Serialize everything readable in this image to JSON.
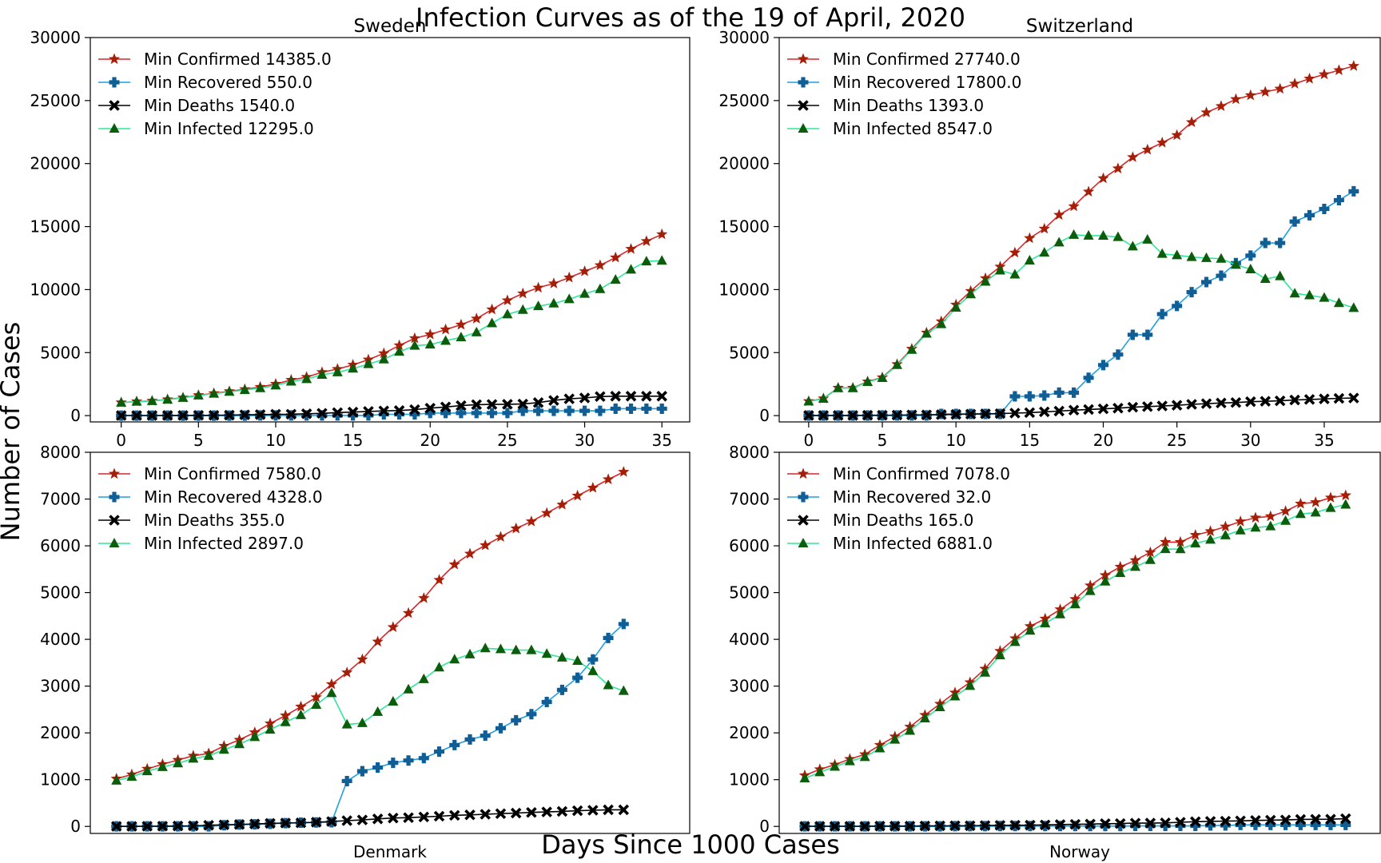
{
  "figure": {
    "title": "Infection Curves as of the 19 of April, 2020",
    "xlabel": "Days Since 1000 Cases",
    "ylabel": "Number of Cases"
  },
  "colors": {
    "confirmed_line": "#d62728",
    "confirmed_marker": "#a41e08",
    "recovered_line": "#1f9fe0",
    "recovered_marker": "#0f5f96",
    "deaths": "#000000",
    "infected_line": "#2ee89a",
    "infected_marker": "#0b5c0b"
  },
  "chart_data": [
    {
      "type": "line",
      "title": "Sweden",
      "title_position": "top",
      "xlim": [
        -2,
        36.8
      ],
      "ylim": [
        -500,
        30000
      ],
      "xticks": [
        0,
        5,
        10,
        15,
        20,
        25,
        30,
        35
      ],
      "yticks": [
        0,
        5000,
        10000,
        15000,
        20000,
        25000,
        30000
      ],
      "legend_location": "upper-left",
      "series": [
        {
          "name": "Min Confirmed 14385.0",
          "marker": "star",
          "values": [
            1040,
            1120,
            1170,
            1280,
            1430,
            1620,
            1770,
            1930,
            2090,
            2270,
            2510,
            2830,
            3060,
            3440,
            3690,
            4030,
            4440,
            4940,
            5570,
            6130,
            6440,
            6830,
            7210,
            7690,
            8420,
            9140,
            9690,
            10150,
            10480,
            10950,
            11450,
            11930,
            12540,
            13220,
            13840,
            14385
          ]
        },
        {
          "name": "Min Recovered 550.0",
          "marker": "plus",
          "values": [
            1,
            1,
            1,
            1,
            1,
            1,
            1,
            1,
            1,
            16,
            16,
            16,
            16,
            16,
            16,
            16,
            16,
            103,
            103,
            103,
            205,
            205,
            205,
            205,
            205,
            205,
            381,
            381,
            381,
            381,
            381,
            381,
            550,
            550,
            550,
            550
          ]
        },
        {
          "name": "Min Deaths 1540.0",
          "marker": "x",
          "values": [
            7,
            7,
            10,
            11,
            15,
            21,
            25,
            36,
            62,
            77,
            105,
            110,
            146,
            180,
            239,
            282,
            333,
            373,
            401,
            477,
            591,
            687,
            793,
            870,
            887,
            899,
            919,
            1033,
            1203,
            1333,
            1400,
            1511,
            1540,
            1540,
            1540,
            1540
          ]
        },
        {
          "name": "Min Infected 12295.0",
          "marker": "triangle",
          "values": [
            1030,
            1110,
            1160,
            1270,
            1410,
            1600,
            1740,
            1890,
            2030,
            2180,
            2390,
            2700,
            2900,
            3240,
            3440,
            3730,
            4090,
            4460,
            5070,
            5550,
            5640,
            5940,
            6210,
            6610,
            7330,
            8040,
            8390,
            8690,
            8900,
            9240,
            9670,
            10040,
            10790,
            11590,
            12240,
            12295
          ]
        }
      ]
    },
    {
      "type": "line",
      "title": "Switzerland",
      "title_position": "top",
      "xlim": [
        -2,
        38.8
      ],
      "ylim": [
        -500,
        30000
      ],
      "xticks": [
        0,
        5,
        10,
        15,
        20,
        25,
        30,
        35
      ],
      "yticks": [
        0,
        5000,
        10000,
        15000,
        20000,
        25000,
        30000
      ],
      "legend_location": "upper-left",
      "series": [
        {
          "name": "Min Confirmed 27740.0",
          "marker": "star",
          "values": [
            1139,
            1359,
            2200,
            2200,
            2700,
            3028,
            4075,
            5294,
            6575,
            7474,
            8795,
            9877,
            10897,
            11811,
            12928,
            14076,
            14829,
            15922,
            16605,
            17768,
            18827,
            19606,
            20505,
            21100,
            21657,
            22253,
            23280,
            24051,
            24551,
            25107,
            25415,
            25688,
            25936,
            26336,
            26732,
            27078,
            27404,
            27740
          ]
        },
        {
          "name": "Min Recovered 17800.0",
          "marker": "plus",
          "values": [
            4,
            4,
            4,
            4,
            4,
            15,
            15,
            15,
            15,
            131,
            131,
            131,
            131,
            131,
            1530,
            1530,
            1595,
            1823,
            1823,
            3000,
            4013,
            4846,
            6415,
            6415,
            8056,
            8704,
            9800,
            10600,
            11100,
            12100,
            12700,
            13700,
            13700,
            15400,
            15900,
            16400,
            17100,
            17800
          ]
        },
        {
          "name": "Min Deaths 1393.0",
          "marker": "x",
          "values": [
            11,
            13,
            14,
            14,
            27,
            28,
            41,
            54,
            56,
            80,
            98,
            120,
            141,
            160,
            197,
            235,
            300,
            359,
            433,
            488,
            536,
            591,
            666,
            715,
            765,
            821,
            895,
            948,
            1002,
            1036,
            1106,
            1138,
            1174,
            1239,
            1281,
            1327,
            1368,
            1393
          ]
        },
        {
          "name": "Min Infected 8547.0",
          "marker": "triangle",
          "values": [
            1124,
            1342,
            2182,
            2182,
            2669,
            2985,
            4019,
            5225,
            6504,
            7263,
            8566,
            9626,
            10625,
            11520,
            11201,
            12311,
            12934,
            13740,
            14349,
            14280,
            14278,
            14169,
            13424,
            13969,
            12836,
            12728,
            12585,
            12503,
            12449,
            11971,
            11609,
            10850,
            11062,
            9697,
            9551,
            9351,
            8936,
            8547
          ]
        }
      ]
    },
    {
      "type": "line",
      "title": "Denmark",
      "title_position": "bottom",
      "xlim": [
        -1.7,
        37.3
      ],
      "ylim": [
        -150,
        8000
      ],
      "xticks": [],
      "yticks": [
        0,
        1000,
        2000,
        3000,
        4000,
        5000,
        6000,
        7000,
        8000
      ],
      "legend_location": "upper-left",
      "series": [
        {
          "name": "Min Confirmed 7580.0",
          "marker": "star",
          "values": [
            1020,
            1110,
            1230,
            1330,
            1420,
            1510,
            1560,
            1720,
            1850,
            2010,
            2200,
            2370,
            2560,
            2760,
            3040,
            3290,
            3570,
            3950,
            4260,
            4560,
            4880,
            5270,
            5600,
            5830,
            6010,
            6190,
            6370,
            6520,
            6700,
            6880,
            7070,
            7240,
            7420,
            7580
          ]
        },
        {
          "name": "Min Recovered 4328.0",
          "marker": "plus",
          "values": [
            1,
            1,
            1,
            1,
            1,
            1,
            1,
            25,
            40,
            45,
            55,
            70,
            80,
            85,
            90,
            970,
            1180,
            1260,
            1360,
            1410,
            1460,
            1600,
            1740,
            1860,
            1940,
            2100,
            2270,
            2400,
            2660,
            2920,
            3180,
            3570,
            4030,
            4328
          ]
        },
        {
          "name": "Min Deaths 355.0",
          "marker": "x",
          "values": [
            1,
            1,
            4,
            6,
            9,
            13,
            24,
            34,
            41,
            52,
            65,
            72,
            77,
            90,
            104,
            123,
            139,
            161,
            179,
            187,
            203,
            218,
            237,
            247,
            260,
            273,
            285,
            299,
            309,
            321,
            336,
            346,
            355,
            355
          ]
        },
        {
          "name": "Min Infected 2897.0",
          "marker": "triangle",
          "values": [
            980,
            1060,
            1180,
            1270,
            1350,
            1450,
            1510,
            1640,
            1760,
            1910,
            2070,
            2230,
            2380,
            2600,
            2850,
            2180,
            2210,
            2450,
            2670,
            2930,
            3150,
            3400,
            3570,
            3680,
            3810,
            3790,
            3770,
            3770,
            3690,
            3610,
            3540,
            3320,
            3020,
            2897
          ]
        }
      ]
    },
    {
      "type": "line",
      "title": "Norway",
      "title_position": "bottom",
      "xlim": [
        -1.7,
        38.3
      ],
      "ylim": [
        -150,
        8000
      ],
      "xticks": [],
      "yticks": [
        0,
        1000,
        2000,
        3000,
        4000,
        5000,
        6000,
        7000,
        8000
      ],
      "legend_location": "upper-left",
      "series": [
        {
          "name": "Min Confirmed 7078.0",
          "marker": "star",
          "values": [
            1090,
            1220,
            1320,
            1440,
            1540,
            1740,
            1920,
            2130,
            2380,
            2620,
            2860,
            3080,
            3370,
            3750,
            4020,
            4280,
            4440,
            4640,
            4860,
            5150,
            5370,
            5550,
            5690,
            5860,
            6080,
            6080,
            6230,
            6310,
            6410,
            6520,
            6600,
            6630,
            6740,
            6900,
            6930,
            7030,
            7078
          ]
        },
        {
          "name": "Min Recovered 32.0",
          "marker": "plus",
          "values": [
            1,
            1,
            1,
            1,
            1,
            1,
            1,
            1,
            1,
            1,
            6,
            6,
            6,
            7,
            7,
            7,
            7,
            7,
            7,
            7,
            7,
            7,
            11,
            11,
            11,
            11,
            11,
            20,
            20,
            32,
            32,
            32,
            32,
            32,
            32,
            32,
            32
          ]
        },
        {
          "name": "Min Deaths 165.0",
          "marker": "x",
          "values": [
            3,
            3,
            3,
            3,
            3,
            7,
            7,
            7,
            10,
            12,
            14,
            14,
            19,
            23,
            25,
            26,
            32,
            39,
            44,
            50,
            59,
            62,
            70,
            71,
            76,
            89,
            101,
            108,
            113,
            119,
            128,
            134,
            139,
            150,
            152,
            154,
            165
          ]
        },
        {
          "name": "Min Infected 6881.0",
          "marker": "triangle",
          "values": [
            1026,
            1159,
            1277,
            1394,
            1483,
            1669,
            1855,
            2045,
            2311,
            2550,
            2781,
            3004,
            3289,
            3660,
            3944,
            4185,
            4342,
            4535,
            4750,
            5033,
            5237,
            5418,
            5550,
            5697,
            5931,
            5928,
            6053,
            6131,
            6226,
            6330,
            6389,
            6417,
            6534,
            6680,
            6712,
            6810,
            6881
          ]
        }
      ]
    }
  ]
}
